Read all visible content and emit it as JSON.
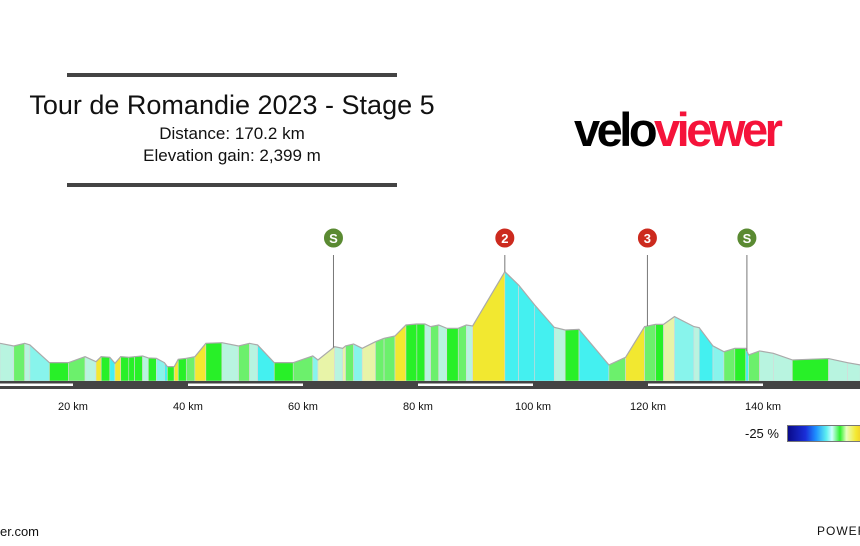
{
  "header": {
    "title": "Tour de Romandie 2023 - Stage 5",
    "distance": "Distance: 170.2 km",
    "elevation_gain": "Elevation gain: 2,399 m"
  },
  "logo": {
    "part1": "velo",
    "part2": "viewer",
    "color1": "#000000",
    "color2": "#f5133a"
  },
  "legend": {
    "min_label": "-25 %"
  },
  "footer": {
    "left": "er.com",
    "right": "POWERE"
  },
  "chart_data": {
    "type": "area",
    "title": "Tour de Romandie 2023 - Stage 5",
    "xlabel": "",
    "ylabel": "",
    "x_unit": "km",
    "xlim": [
      7.3,
      156.9
    ],
    "x_ticks": [
      20,
      40,
      60,
      80,
      100,
      120,
      140
    ],
    "x_tick_labels": [
      "20 km",
      "40 km",
      "60 km",
      "80 km",
      "100 km",
      "120 km",
      "140 km"
    ],
    "grid": false,
    "profile": {
      "km": [
        7.3,
        9.7,
        11.6,
        12.5,
        15.9,
        19.2,
        22.1,
        24.0,
        24.9,
        26.4,
        27.3,
        28.3,
        29.7,
        30.7,
        32.1,
        33.1,
        34.5,
        35.9,
        36.4,
        37.6,
        38.3,
        39.7,
        41.2,
        43.1,
        45.9,
        48.8,
        50.7,
        52.1,
        55.0,
        58.3,
        61.7,
        62.6,
        65.5,
        66.9,
        67.4,
        68.8,
        70.3,
        72.6,
        74.1,
        76.0,
        77.9,
        79.8,
        81.2,
        82.2,
        83.6,
        85.0,
        87.0,
        88.4,
        89.5,
        95.1,
        97.5,
        100.3,
        103.7,
        105.6,
        108.0,
        113.2,
        116.1,
        119.4,
        121.3,
        122.7,
        124.6,
        128.0,
        128.9,
        131.3,
        133.2,
        135.1,
        137.0,
        137.5,
        139.4,
        141.8,
        145.1,
        151.4,
        154.7,
        156.9
      ],
      "elevation_m": [
        715,
        686,
        715,
        697,
        502,
        502,
        568,
        513,
        568,
        561,
        495,
        568,
        561,
        568,
        576,
        554,
        550,
        502,
        458,
        458,
        539,
        550,
        568,
        715,
        722,
        686,
        715,
        697,
        502,
        502,
        576,
        532,
        678,
        660,
        686,
        708,
        660,
        733,
        770,
        796,
        917,
        928,
        928,
        899,
        917,
        880,
        880,
        917,
        906,
        1504,
        1357,
        1137,
        891,
        862,
        869,
        477,
        561,
        899,
        924,
        924,
        1009,
        899,
        888,
        686,
        623,
        660,
        660,
        587,
        631,
        605,
        532,
        547,
        502,
        477
      ]
    },
    "markers": [
      {
        "km": 65.3,
        "label": "S",
        "type": "sprint",
        "color": "#5a8a32"
      },
      {
        "km": 95.1,
        "label": "2",
        "type": "climb-cat-2",
        "color": "#cc2a1e"
      },
      {
        "km": 119.9,
        "label": "3",
        "type": "climb-cat-3",
        "color": "#cc2a1e"
      },
      {
        "km": 137.2,
        "label": "S",
        "type": "sprint",
        "color": "#5a8a32"
      }
    ],
    "gradient_colors": {
      "steep_down": "#44f0f0",
      "down": "#88f4ec",
      "slight_down": "#b8f4e0",
      "flat": "#28f028",
      "slight_up": "#6cf06c",
      "up": "#e8f4a8",
      "steep_up": "#f2e830"
    }
  }
}
